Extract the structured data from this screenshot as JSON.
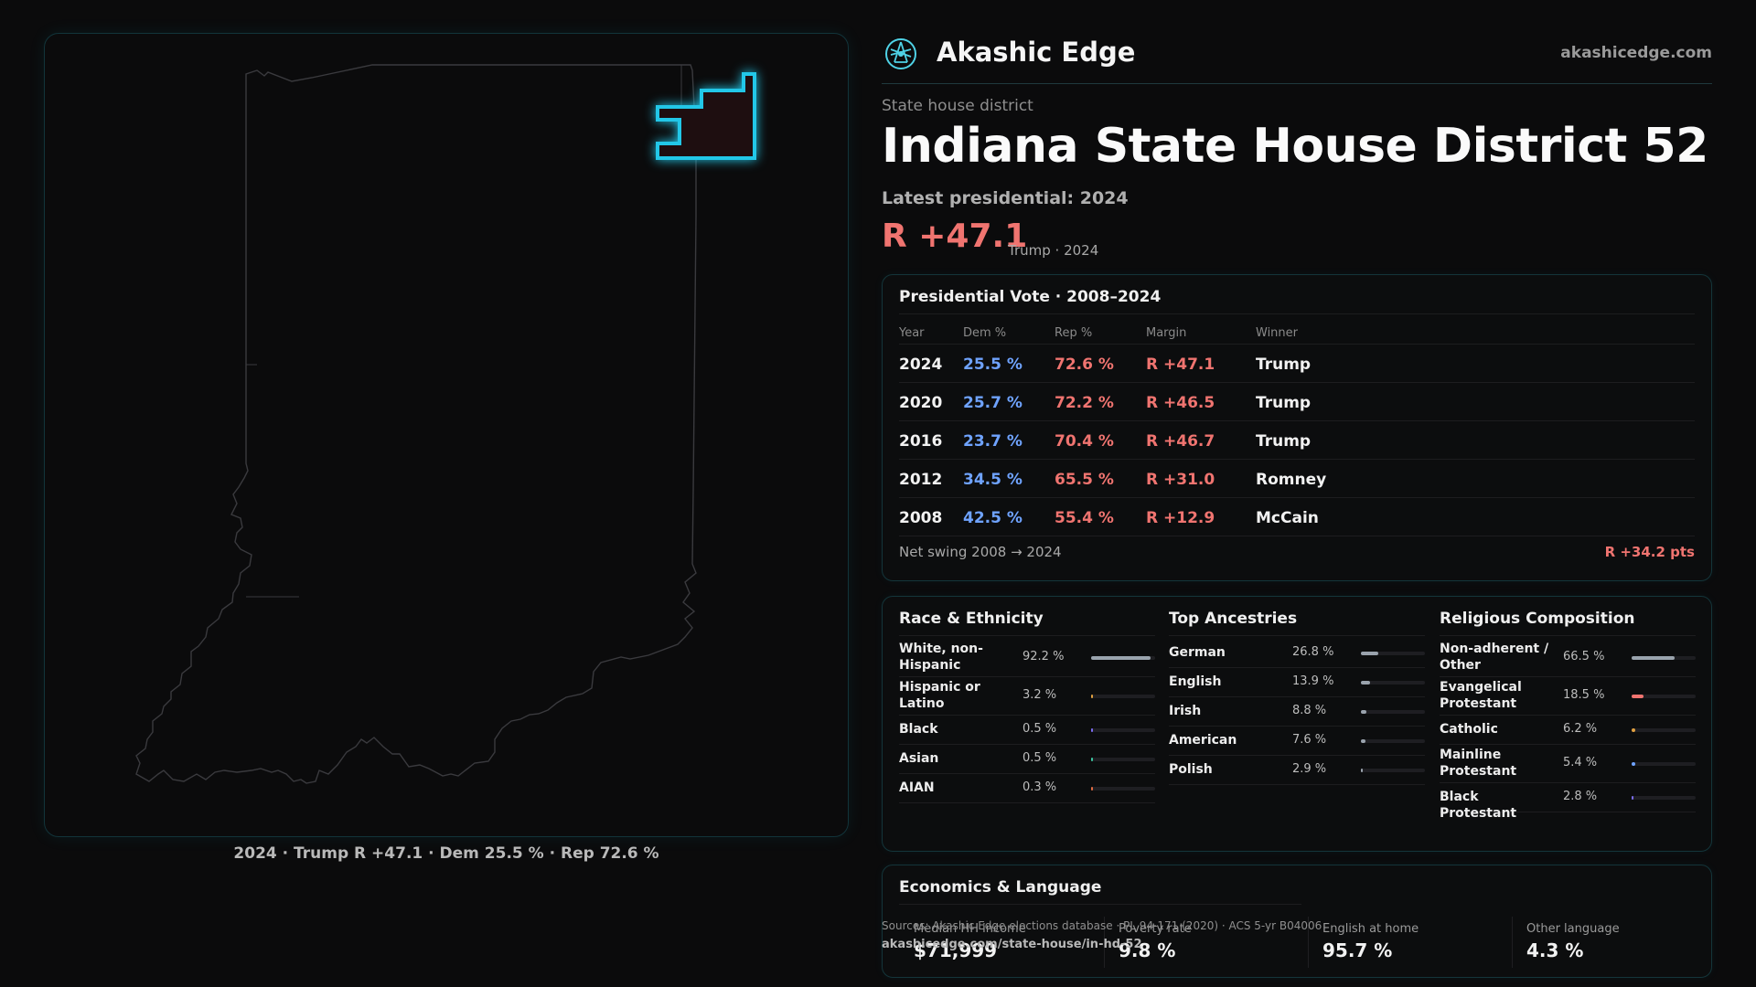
{
  "brand": {
    "name": "Akashic Edge",
    "url": "akashicedge.com"
  },
  "header": {
    "eyebrow": "State house district",
    "title": "Indiana State House District 52",
    "latest": "Latest presidential: 2024",
    "margin": "R +47.1",
    "margin_sub": "Trump · 2024"
  },
  "map": {
    "caption": "2024 · Trump R +47.1 · Dem 25.5 % · Rep 72.6 %",
    "colors": {
      "outline": "#3a3a3e",
      "highlight": "#22c7e8",
      "fill": "#1e0e10"
    }
  },
  "presidential": {
    "title": "Presidential Vote · 2008–2024",
    "headers": {
      "year": "Year",
      "dem": "Dem %",
      "rep": "Rep %",
      "margin": "Margin",
      "winner": "Winner"
    },
    "rows": [
      {
        "year": "2024",
        "dem": "25.5 %",
        "rep": "72.6 %",
        "margin": "R +47.1",
        "winner": "Trump"
      },
      {
        "year": "2020",
        "dem": "25.7 %",
        "rep": "72.2 %",
        "margin": "R +46.5",
        "winner": "Trump"
      },
      {
        "year": "2016",
        "dem": "23.7 %",
        "rep": "70.4 %",
        "margin": "R +46.7",
        "winner": "Trump"
      },
      {
        "year": "2012",
        "dem": "34.5 %",
        "rep": "65.5 %",
        "margin": "R +31.0",
        "winner": "Romney"
      },
      {
        "year": "2008",
        "dem": "42.5 %",
        "rep": "55.4 %",
        "margin": "R +12.9",
        "winner": "McCain"
      }
    ],
    "swing_label": "Net swing 2008 → 2024",
    "swing_value": "R +34.2 pts"
  },
  "race": {
    "title": "Race & Ethnicity",
    "items": [
      {
        "label": "White, non-Hispanic",
        "value": "92.2 %",
        "pct": 92.2,
        "color": "#9aa3ad"
      },
      {
        "label": "Hispanic or Latino",
        "value": "3.2 %",
        "pct": 3.2,
        "color": "#e0a040"
      },
      {
        "label": "Black",
        "value": "0.5 %",
        "pct": 0.5,
        "color": "#7b6cf0"
      },
      {
        "label": "Asian",
        "value": "0.5 %",
        "pct": 0.5,
        "color": "#3cc4a0"
      },
      {
        "label": "AIAN",
        "value": "0.3 %",
        "pct": 0.3,
        "color": "#e06a40"
      }
    ]
  },
  "ancestry": {
    "title": "Top Ancestries",
    "items": [
      {
        "label": "German",
        "value": "26.8 %",
        "pct": 26.8,
        "color": "#9aa3ad"
      },
      {
        "label": "English",
        "value": "13.9 %",
        "pct": 13.9,
        "color": "#9aa3ad"
      },
      {
        "label": "Irish",
        "value": "8.8 %",
        "pct": 8.8,
        "color": "#9aa3ad"
      },
      {
        "label": "American",
        "value": "7.6 %",
        "pct": 7.6,
        "color": "#9aa3ad"
      },
      {
        "label": "Polish",
        "value": "2.9 %",
        "pct": 2.9,
        "color": "#9aa3ad"
      }
    ]
  },
  "religion": {
    "title": "Religious Composition",
    "items": [
      {
        "label": "Non-adherent / Other",
        "value": "66.5 %",
        "pct": 66.5,
        "color": "#9aa3ad"
      },
      {
        "label": "Evangelical Protestant",
        "value": "18.5 %",
        "pct": 18.5,
        "color": "#f07470"
      },
      {
        "label": "Catholic",
        "value": "6.2 %",
        "pct": 6.2,
        "color": "#e0a040"
      },
      {
        "label": "Mainline Protestant",
        "value": "5.4 %",
        "pct": 5.4,
        "color": "#6fa3ff"
      },
      {
        "label": "Black Protestant",
        "value": "2.8 %",
        "pct": 2.8,
        "color": "#7b6cf0"
      }
    ]
  },
  "economics": {
    "title": "Economics & Language",
    "stats": [
      {
        "label": "Median HH income",
        "value": "$71,999"
      },
      {
        "label": "Poverty rate",
        "value": "9.8 %"
      },
      {
        "label": "English at home",
        "value": "95.7 %"
      },
      {
        "label": "Other language",
        "value": "4.3 %"
      }
    ]
  },
  "sources": {
    "text": "Sources: Akashic Edge elections database · PL 94-171 (2020) · ACS 5-yr B04006",
    "url": "akashicedge.com/state-house/in-hd-52"
  }
}
